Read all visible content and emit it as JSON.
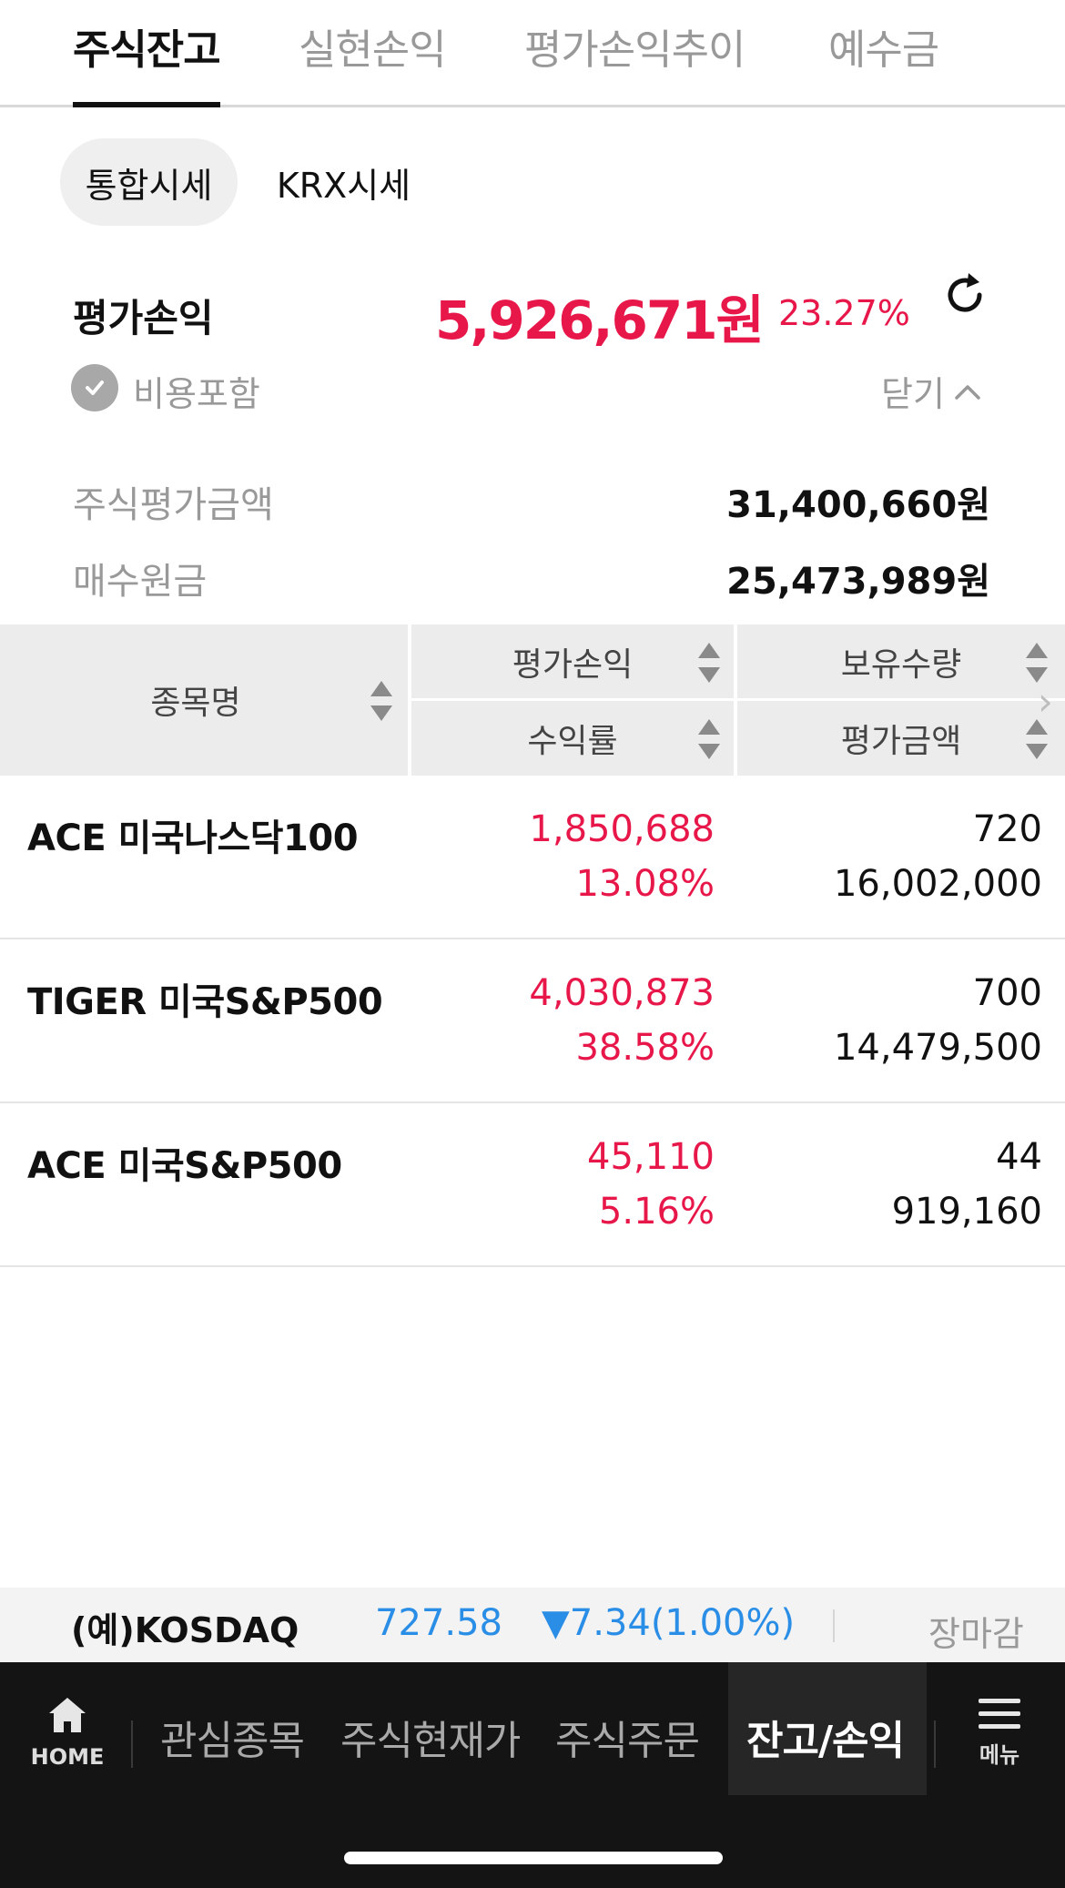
{
  "tabs": [
    {
      "label": "주식잔고"
    },
    {
      "label": "실현손익"
    },
    {
      "label": "평가손익추이"
    },
    {
      "label": "예수금"
    }
  ],
  "price_mode": {
    "integrated": "통합시세",
    "krx": "KRX시세"
  },
  "summary": {
    "pl_label": "평가손익",
    "pl_amount": "5,926,671원",
    "pl_rate": "23.27%",
    "fee_label": "비용포함",
    "close_label": "닫기",
    "eval_label": "주식평가금액",
    "eval_value": "31,400,660원",
    "cost_label": "매수원금",
    "cost_value": "25,473,989원"
  },
  "table": {
    "headers": {
      "name": "종목명",
      "pl": "평가손익",
      "rate": "수익률",
      "qty": "보유수량",
      "value": "평가금액"
    },
    "rows": [
      {
        "name": "ACE 미국나스닥100",
        "pl": "1,850,688",
        "rate": "13.08%",
        "qty": "720",
        "value": "16,002,000"
      },
      {
        "name": "TIGER 미국S&P500",
        "pl": "4,030,873",
        "rate": "38.58%",
        "qty": "700",
        "value": "14,479,500"
      },
      {
        "name": "ACE 미국S&P500",
        "pl": "45,110",
        "rate": "5.16%",
        "qty": "44",
        "value": "919,160"
      }
    ]
  },
  "ticker": {
    "name": "(예)KOSDAQ",
    "price": "727.58",
    "change": "▼7.34(1.00%)",
    "status": "장마감"
  },
  "bottom_nav": {
    "home": "HOME",
    "items": [
      {
        "label": "관심종목"
      },
      {
        "label": "주식현재가"
      },
      {
        "label": "주식주문"
      },
      {
        "label": "잔고/손익"
      }
    ],
    "menu": "메뉴"
  },
  "colors": {
    "positive": "#e8174a",
    "negative": "#2b8ee6"
  }
}
